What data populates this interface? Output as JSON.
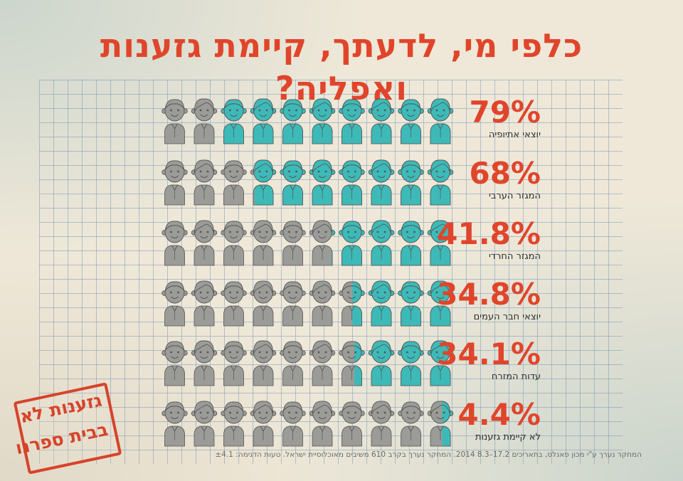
{
  "title": "כלפי מי, לדעתך, קיימת גזענות ואפליה?",
  "colors": {
    "accent": "#e0452b",
    "filled": "#3dbab8",
    "empty": "#9b9b98",
    "ink": "#555555"
  },
  "chart_data": {
    "type": "pictograph",
    "title": "כלפי מי, לדעתך, קיימת גזענות ואפליה?",
    "icons_per_row": 10,
    "unit": "%",
    "rows": [
      {
        "value": 79,
        "value_label": "79%",
        "label": "יוצאי אתיופיה"
      },
      {
        "value": 68,
        "value_label": "68%",
        "label": "המגזר הערבי"
      },
      {
        "value": 41.8,
        "value_label": "41.8%",
        "label": "המגזר החרדי"
      },
      {
        "value": 34.8,
        "value_label": "34.8%",
        "label": "יוצאי חבר העמים"
      },
      {
        "value": 34.1,
        "value_label": "34.1%",
        "label": "עדות המזרח"
      },
      {
        "value": 4.4,
        "value_label": "4.4%",
        "label": "לא קיימת גזענות"
      }
    ]
  },
  "footnote": "המחקר נערך ע\"י מכון פאנלס, בתאריכים 17.2–8.3 2014. המחקר נערך בקרב 610 משיבים מאוכלוסיית ישראל. טעות הדגימה: ±4.1",
  "stamp": {
    "line1": "גזענות לא",
    "line2": "בבית ספרנו"
  }
}
